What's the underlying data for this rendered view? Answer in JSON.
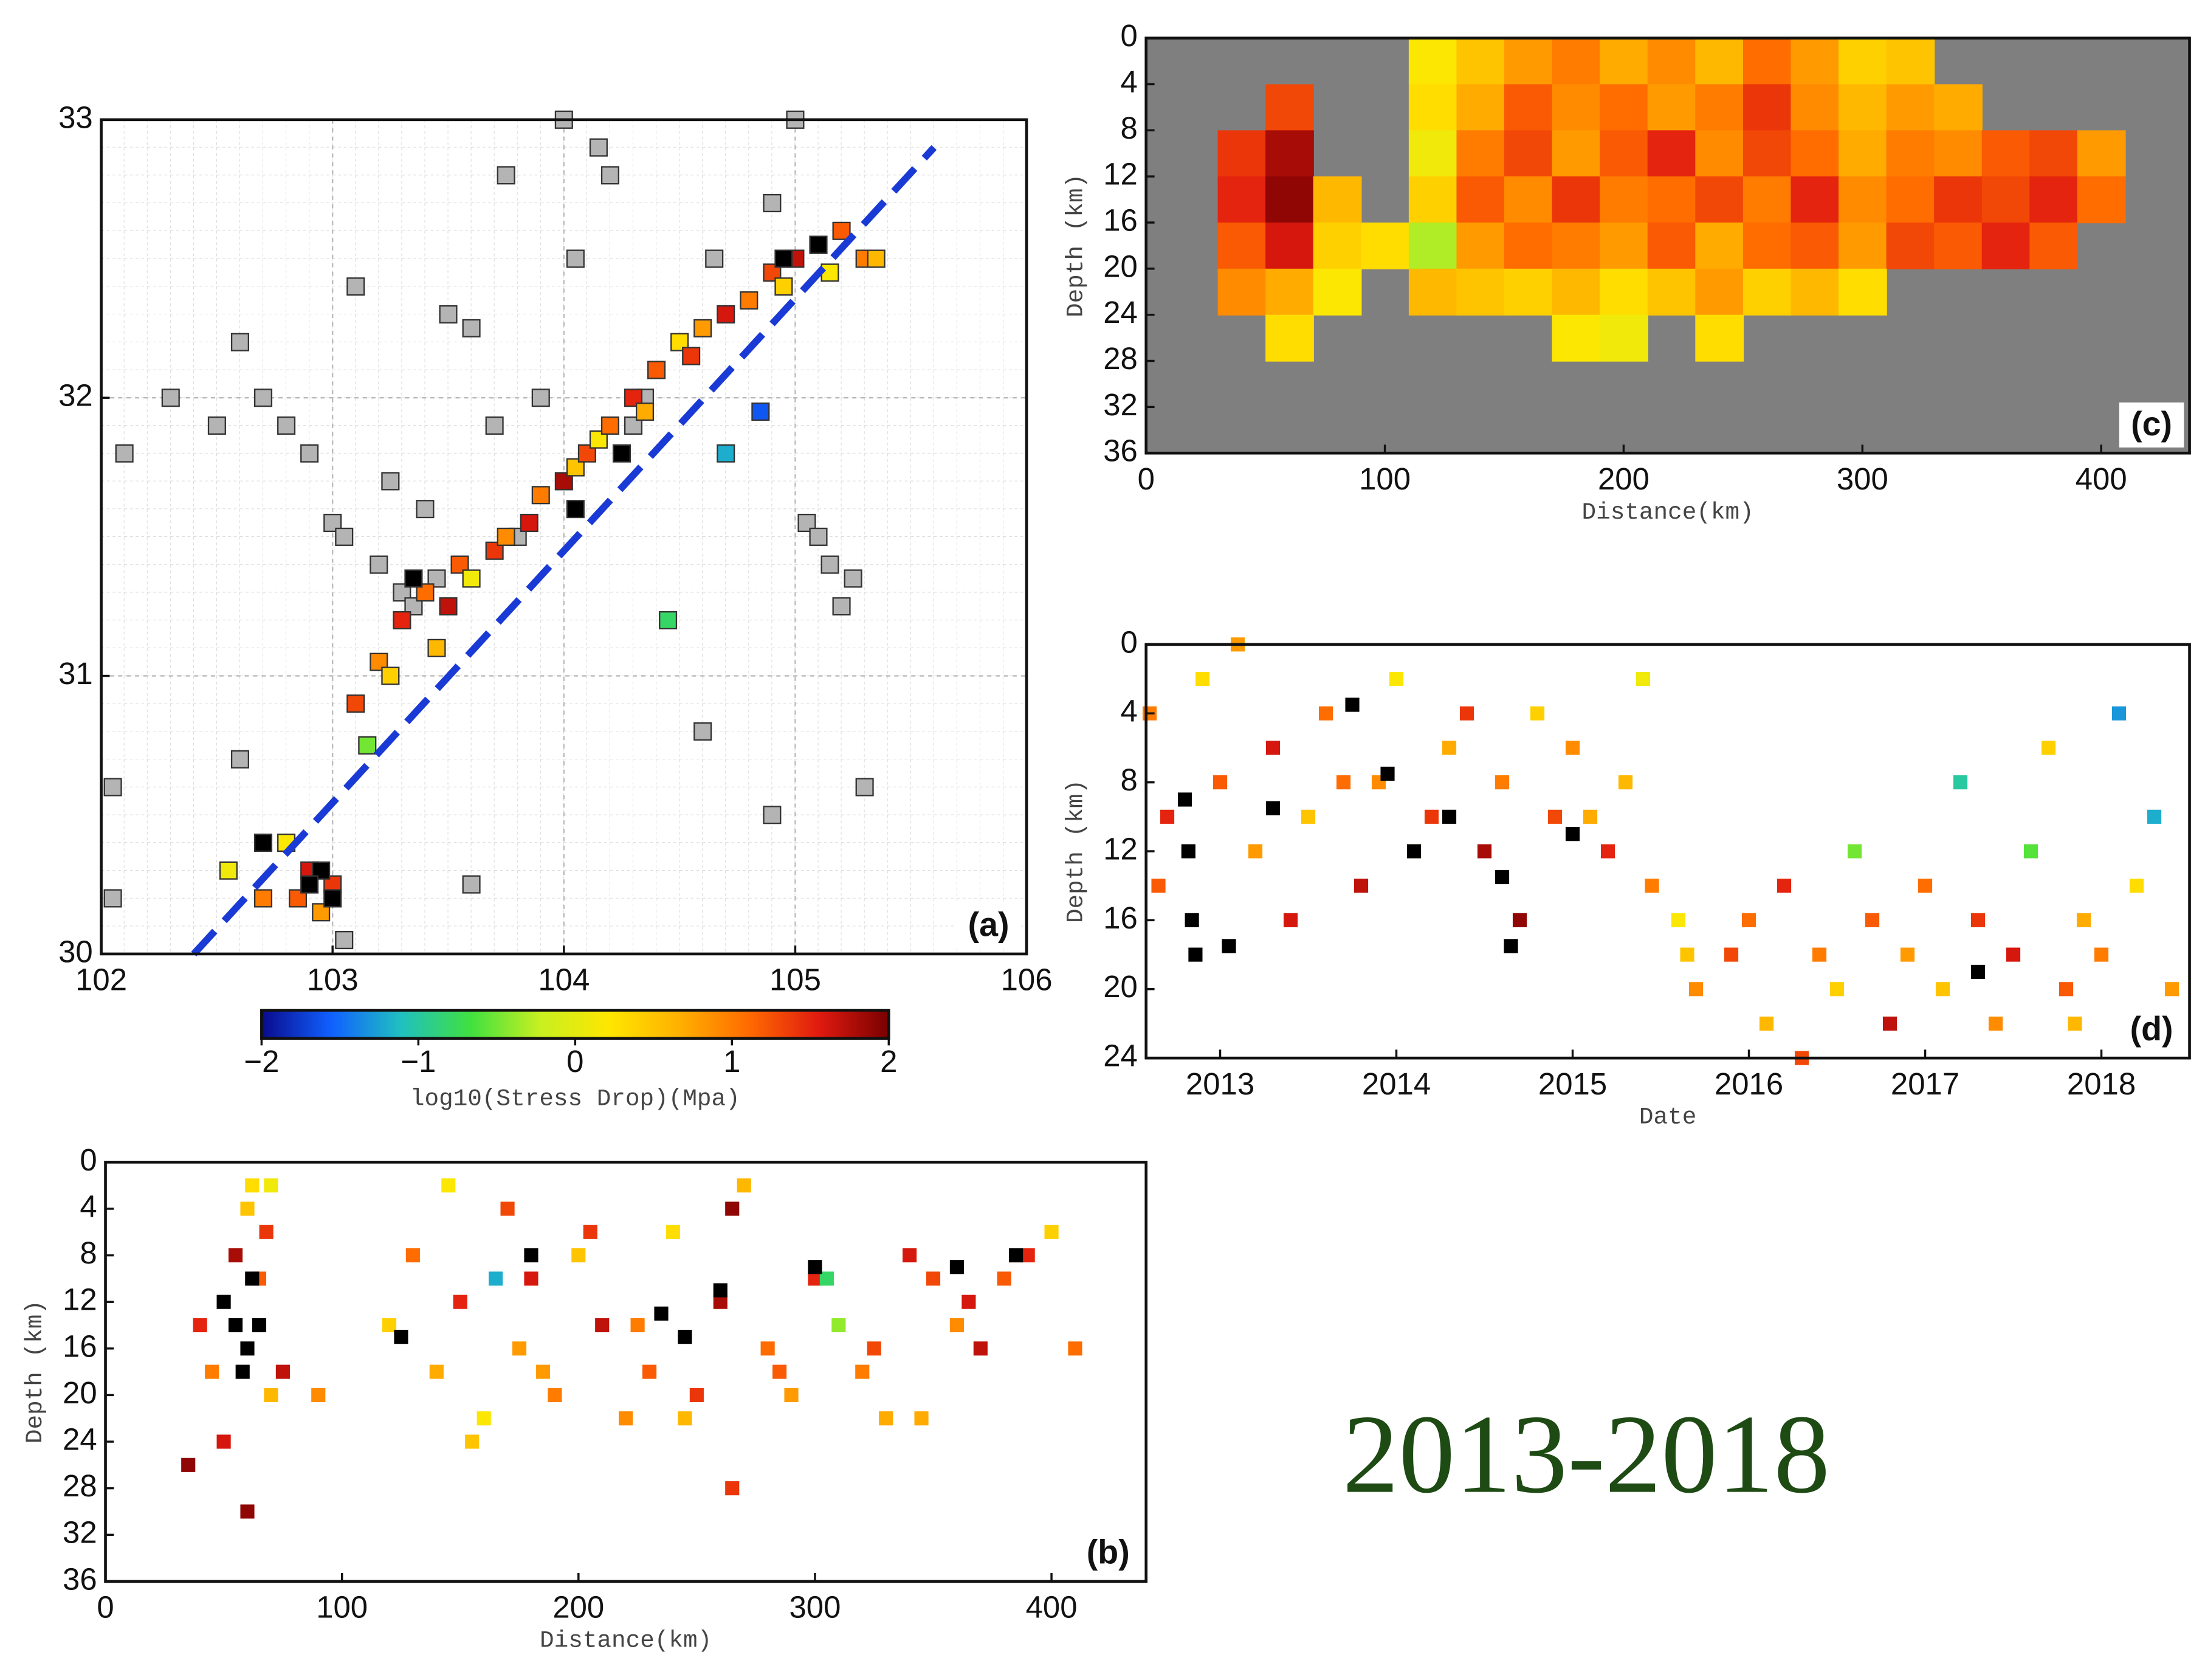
{
  "caption": "2013-2018",
  "chart_data": [
    {
      "type": "scatter",
      "panel_label": "(a)",
      "xlim": [
        102,
        106
      ],
      "ylim": [
        30,
        33
      ],
      "xticks": [
        102,
        103,
        104,
        105,
        106
      ],
      "yticks": [
        30,
        31,
        32,
        33
      ],
      "grid": true,
      "trend_line": {
        "x": [
          102.4,
          105.6
        ],
        "y": [
          30,
          32.9
        ],
        "color": "#1a3ad6"
      },
      "series": [
        {
          "color": "#b4b4b4",
          "x": [
            102.1,
            102.05,
            102.3,
            102.5,
            102.6,
            102.7,
            102.8,
            102.9,
            103.0,
            103.05,
            103.1,
            103.2,
            103.25,
            103.3,
            103.35,
            103.4,
            103.45,
            103.5,
            103.6,
            103.7,
            103.75,
            103.8,
            103.9,
            104.0,
            104.05,
            104.15,
            104.2,
            104.3,
            104.35,
            104.6,
            104.65,
            104.9,
            105.0,
            105.05,
            105.1,
            105.15,
            105.2,
            105.25,
            105.3,
            102.05,
            102.6,
            103.05,
            103.6,
            104.9
          ],
          "y": [
            31.8,
            30.6,
            32.0,
            31.9,
            32.2,
            32.0,
            31.9,
            31.8,
            31.55,
            31.5,
            32.4,
            31.4,
            31.7,
            31.3,
            31.25,
            31.6,
            31.35,
            32.3,
            32.25,
            31.9,
            32.8,
            31.5,
            32.0,
            33.0,
            32.5,
            32.9,
            32.8,
            31.9,
            32.0,
            30.8,
            32.5,
            30.5,
            33.0,
            31.55,
            31.5,
            31.4,
            31.25,
            31.35,
            30.6,
            30.2,
            30.7,
            30.05,
            30.25,
            32.7
          ]
        },
        {
          "x": [
            102.85,
            102.9,
            102.95,
            103.0,
            102.8,
            102.7,
            103.1,
            103.2,
            103.3,
            103.25,
            103.4,
            103.5,
            103.45,
            103.55,
            103.6,
            103.7,
            103.75,
            103.85,
            103.9,
            104.0,
            104.05,
            104.1,
            104.15,
            104.2,
            104.3,
            104.35,
            104.4,
            104.5,
            104.55,
            104.6,
            104.7,
            104.8,
            104.9,
            104.95,
            105.0,
            105.1,
            105.15,
            105.2,
            105.3,
            105.35,
            104.85,
            104.7,
            103.15,
            102.55,
            104.45
          ],
          "y": [
            30.2,
            30.3,
            30.15,
            30.25,
            30.4,
            30.2,
            30.9,
            31.05,
            31.2,
            31.0,
            31.3,
            31.25,
            31.1,
            31.4,
            31.35,
            31.45,
            31.5,
            31.55,
            31.65,
            31.7,
            31.75,
            31.8,
            31.85,
            31.9,
            32.0,
            31.95,
            32.1,
            32.2,
            32.15,
            32.25,
            32.3,
            32.35,
            32.45,
            32.4,
            32.5,
            32.55,
            32.45,
            32.6,
            32.5,
            32.5,
            31.95,
            31.8,
            30.75,
            30.3,
            31.2
          ],
          "values": [
            1.2,
            1.6,
            0.8,
            1.4,
            0.2,
            1.0,
            1.3,
            0.9,
            1.5,
            0.4,
            1.1,
            1.7,
            0.6,
            1.2,
            0.1,
            1.4,
            0.9,
            1.6,
            1.0,
            1.8,
            0.5,
            1.3,
            0.2,
            1.1,
            1.5,
            0.7,
            1.2,
            0.3,
            1.4,
            0.8,
            1.6,
            1.0,
            1.3,
            0.4,
            1.7,
            0.9,
            0.2,
            1.2,
            1.0,
            0.6,
            -1.6,
            -1.2,
            -0.5,
            0.1,
            -0.8
          ]
        },
        {
          "color": "#000000",
          "x": [
            102.95,
            103.0,
            102.9,
            103.35,
            104.05,
            104.25,
            104.95,
            105.1,
            102.7
          ],
          "y": [
            30.3,
            30.2,
            30.25,
            31.35,
            31.6,
            31.8,
            32.5,
            32.55,
            30.4
          ]
        }
      ]
    },
    {
      "type": "colorbar",
      "xlim": [
        -2,
        2
      ],
      "label": "log10(Stress Drop)(Mpa)",
      "xticks": [
        {
          "value": -2,
          "label": "−2"
        },
        {
          "value": -1,
          "label": "−1"
        },
        0,
        1,
        2
      ],
      "colors": [
        "#0a0a8c",
        "#1060ff",
        "#20c0c0",
        "#40e040",
        "#c8f020",
        "#ffe600",
        "#ffb000",
        "#ff6a00",
        "#e01a10",
        "#780000"
      ]
    },
    {
      "type": "scatter",
      "panel_label": "(b)",
      "x_label": "Distance(km)",
      "y_label": "Depth (km)",
      "y_reversed": true,
      "xlim": [
        0,
        440
      ],
      "ylim": [
        0,
        36
      ],
      "xticks": [
        0,
        100,
        200,
        300,
        400
      ],
      "yticks": [
        0,
        4,
        8,
        12,
        16,
        20,
        24,
        28,
        32,
        36
      ],
      "series": [
        {
          "x": [
            40,
            45,
            55,
            60,
            65,
            70,
            75,
            35,
            50,
            62,
            68,
            90,
            120,
            130,
            140,
            150,
            160,
            170,
            175,
            180,
            190,
            200,
            210,
            220,
            230,
            240,
            250,
            260,
            270,
            280,
            290,
            300,
            310,
            320,
            330,
            340,
            350,
            360,
            370,
            380,
            390,
            400,
            410,
            145,
            165,
            185,
            205,
            225,
            245,
            265,
            285,
            305,
            325,
            345,
            365,
            385,
            155,
            265,
            60,
            70
          ],
          "y": [
            14,
            18,
            8,
            4,
            10,
            20,
            18,
            26,
            24,
            2,
            6,
            20,
            14,
            8,
            18,
            12,
            22,
            4,
            16,
            10,
            20,
            8,
            14,
            22,
            18,
            6,
            20,
            12,
            2,
            16,
            20,
            10,
            14,
            18,
            22,
            8,
            10,
            14,
            16,
            10,
            8,
            6,
            16,
            2,
            10,
            18,
            6,
            14,
            22,
            4,
            18,
            10,
            16,
            22,
            12,
            8,
            24,
            28,
            30,
            2
          ],
          "values": [
            1.5,
            1.0,
            1.8,
            0.5,
            1.2,
            0.6,
            1.7,
            1.9,
            1.6,
            0.3,
            1.4,
            0.9,
            0.4,
            1.1,
            0.7,
            1.5,
            0.2,
            1.3,
            0.8,
            1.6,
            1.0,
            0.5,
            1.7,
            0.9,
            1.2,
            0.3,
            1.4,
            1.8,
            0.6,
            1.1,
            0.8,
            1.5,
            -0.4,
            1.0,
            0.7,
            1.6,
            1.3,
            0.9,
            1.7,
            1.2,
            1.5,
            0.4,
            1.1,
            0.2,
            -1.2,
            0.8,
            1.4,
            1.0,
            0.6,
            1.9,
            1.2,
            -0.8,
            1.3,
            0.7,
            1.6,
            1.1,
            0.5,
            1.4,
            1.9,
            0.1
          ]
        },
        {
          "color": "#000000",
          "x": [
            50,
            55,
            60,
            58,
            62,
            65,
            125,
            180,
            235,
            245,
            260,
            300,
            360,
            385
          ],
          "y": [
            12,
            14,
            16,
            18,
            10,
            14,
            15,
            8,
            13,
            15,
            11,
            9,
            9,
            8
          ]
        }
      ]
    },
    {
      "type": "heatmap",
      "panel_label": "(c)",
      "x_label": "Distance(km)",
      "y_label": "Depth (km)",
      "y_reversed": true,
      "xlim": [
        0,
        437
      ],
      "ylim": [
        0,
        36
      ],
      "xticks": [
        0,
        100,
        200,
        300,
        400
      ],
      "yticks": [
        0,
        4,
        8,
        12,
        16,
        20,
        24,
        28,
        32,
        36
      ],
      "nodata_color": "#7f7f7f",
      "x_edges": [
        30,
        50,
        70,
        90,
        110,
        130,
        150,
        170,
        190,
        210,
        230,
        250,
        270,
        290,
        310,
        330,
        350,
        370,
        390,
        410
      ],
      "y_edges": [
        0,
        4,
        8,
        12,
        16,
        20,
        24,
        28
      ],
      "z": [
        [
          null,
          null,
          null,
          null,
          0.2,
          0.5,
          0.8,
          1.0,
          0.7,
          0.9,
          0.6,
          1.1,
          0.8,
          0.4,
          0.5,
          null,
          null,
          null,
          null
        ],
        [
          null,
          1.3,
          null,
          null,
          0.3,
          0.7,
          1.2,
          0.9,
          1.1,
          0.8,
          1.0,
          1.4,
          0.9,
          0.6,
          0.8,
          0.7,
          null,
          null,
          null
        ],
        [
          1.4,
          1.8,
          null,
          null,
          0.1,
          1.0,
          1.3,
          0.8,
          1.2,
          1.5,
          0.9,
          1.3,
          1.1,
          0.7,
          1.0,
          0.9,
          1.2,
          1.3,
          0.8
        ],
        [
          1.5,
          1.9,
          0.6,
          null,
          0.4,
          1.2,
          0.9,
          1.4,
          1.0,
          1.1,
          1.3,
          1.0,
          1.5,
          0.9,
          1.1,
          1.4,
          1.3,
          1.5,
          1.1
        ],
        [
          1.2,
          1.6,
          0.4,
          0.3,
          -0.3,
          0.8,
          1.1,
          1.0,
          0.8,
          1.2,
          0.7,
          1.1,
          1.2,
          0.8,
          1.3,
          1.2,
          1.5,
          1.2,
          null
        ],
        [
          0.9,
          0.7,
          0.2,
          null,
          0.6,
          0.5,
          0.4,
          0.6,
          0.3,
          0.5,
          0.8,
          0.4,
          0.6,
          0.3,
          null,
          null,
          null,
          null,
          null
        ],
        [
          null,
          0.3,
          null,
          null,
          null,
          null,
          null,
          0.2,
          0.1,
          null,
          0.3,
          null,
          null,
          null,
          null,
          null,
          null,
          null,
          null
        ]
      ]
    },
    {
      "type": "scatter",
      "panel_label": "(d)",
      "x_label": "Date",
      "y_label": "Depth (km)",
      "y_reversed": true,
      "xlim": [
        2012.58,
        2018.5
      ],
      "ylim": [
        0,
        24
      ],
      "xticks": [
        2013,
        2014,
        2015,
        2016,
        2017,
        2018
      ],
      "yticks": [
        0,
        4,
        8,
        12,
        16,
        20,
        24
      ],
      "series": [
        {
          "x": [
            2012.6,
            2012.7,
            2012.9,
            2013.0,
            2013.2,
            2013.3,
            2013.5,
            2013.6,
            2013.8,
            2013.9,
            2014.0,
            2014.2,
            2014.3,
            2014.5,
            2014.6,
            2014.8,
            2014.9,
            2015.0,
            2015.2,
            2015.3,
            2015.4,
            2012.65,
            2013.1,
            2013.4,
            2013.7,
            2014.1,
            2014.4,
            2014.7,
            2015.1,
            2015.45,
            2015.6,
            2015.7,
            2015.9,
            2016.1,
            2016.2,
            2016.4,
            2016.5,
            2016.7,
            2016.8,
            2016.9,
            2017.0,
            2017.1,
            2017.3,
            2017.4,
            2017.5,
            2017.6,
            2017.8,
            2017.9,
            2018.0,
            2018.2,
            2018.3,
            2018.4,
            2015.65,
            2016.3,
            2016.6,
            2017.2,
            2017.7,
            2018.1,
            2016.0,
            2017.85
          ],
          "y": [
            4,
            10,
            2,
            8,
            12,
            6,
            10,
            4,
            14,
            8,
            2,
            10,
            6,
            12,
            8,
            4,
            10,
            6,
            12,
            8,
            2,
            14,
            0,
            16,
            8,
            12,
            4,
            16,
            10,
            14,
            16,
            20,
            18,
            22,
            14,
            18,
            20,
            16,
            22,
            18,
            14,
            20,
            16,
            22,
            18,
            12,
            20,
            16,
            18,
            14,
            10,
            20,
            18,
            24,
            12,
            8,
            6,
            4,
            16,
            22
          ],
          "values": [
            1.0,
            1.5,
            0.3,
            1.2,
            0.8,
            1.6,
            0.5,
            1.1,
            1.7,
            0.9,
            0.2,
            1.4,
            0.7,
            1.8,
            1.0,
            0.4,
            1.3,
            0.9,
            1.5,
            0.6,
            0.1,
            1.2,
            0.8,
            1.6,
            1.1,
            0.3,
            1.4,
            1.9,
            0.7,
            1.0,
            0.2,
            0.9,
            1.3,
            0.6,
            1.5,
            1.0,
            0.4,
            1.2,
            1.7,
            0.8,
            1.1,
            0.5,
            1.4,
            0.9,
            1.6,
            -0.6,
            1.2,
            0.7,
            1.0,
            0.3,
            -1.2,
            0.8,
            0.5,
            1.3,
            -0.5,
            -1.0,
            0.4,
            -1.3,
            1.1,
            0.6
          ]
        },
        {
          "color": "#000000",
          "x": [
            2012.8,
            2012.82,
            2012.84,
            2012.86,
            2013.05,
            2013.3,
            2013.75,
            2013.95,
            2014.1,
            2014.3,
            2014.6,
            2014.65,
            2015.0,
            2017.3
          ],
          "y": [
            9,
            12,
            16,
            18,
            17.5,
            9.5,
            3.5,
            7.5,
            12,
            10,
            13.5,
            17.5,
            11,
            19
          ]
        }
      ]
    }
  ]
}
